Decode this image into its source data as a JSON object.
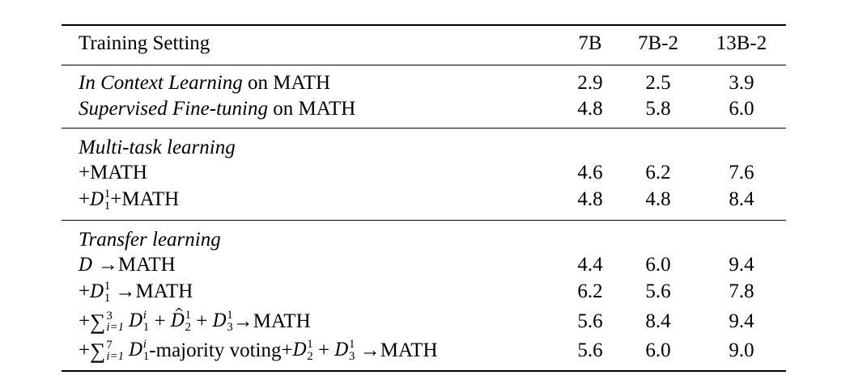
{
  "header": {
    "setting": "Training Setting",
    "col1": "7B",
    "col2": "7B-2",
    "col3": "13B-2"
  },
  "rows": {
    "icl": {
      "label_it": "In Context Learning",
      "label_rest": " on MATH",
      "v1": "2.9",
      "v2": "2.5",
      "v3": "3.9"
    },
    "sft": {
      "label_it": "Supervised Fine-tuning",
      "label_rest": " on MATH",
      "v1": "4.8",
      "v2": "5.8",
      "v3": "6.0"
    },
    "mtl_title": "Multi-task learning",
    "mtl1": {
      "label": "+MATH",
      "v1": "4.6",
      "v2": "6.2",
      "v3": "7.6"
    },
    "mtl2": {
      "prefix": "+",
      "cal": "D",
      "sup": "1",
      "sub": "1",
      "suffix": "+MATH",
      "v1": "4.8",
      "v2": "4.8",
      "v3": "8.4"
    },
    "tl_title": "Transfer learning",
    "tl1": {
      "cal": "D",
      "suffix": " →MATH",
      "v1": "4.4",
      "v2": "6.0",
      "v3": "9.4"
    },
    "tl2": {
      "prefix": "+",
      "cal": "D",
      "sup": "1",
      "sub": "1",
      "suffix": " →MATH",
      "v1": "6.2",
      "v2": "5.6",
      "v3": "7.8"
    },
    "tl3": {
      "prefix": "+ ",
      "sum_upper": "3",
      "sum_lower": "i=1",
      "t1_sup": "i",
      "t1_sub": "1",
      "plus": " + ",
      "t2_sup": "1",
      "t2_sub": "2",
      "t3_sup": "1",
      "t3_sub": "3",
      "suffix": "→MATH",
      "v1": "5.6",
      "v2": "8.4",
      "v3": "9.4"
    },
    "tl4": {
      "prefix": "+ ",
      "sum_upper": "7",
      "sum_lower": "i=1",
      "t1_sup": "i",
      "t1_sub": "1",
      "mid": "-majority voting+",
      "t2_sup": "1",
      "t2_sub": "2",
      "plus": " + ",
      "t3_sup": "1",
      "t3_sub": "3",
      "suffix": " →MATH",
      "v1": "5.6",
      "v2": "6.0",
      "v3": "9.0"
    }
  }
}
